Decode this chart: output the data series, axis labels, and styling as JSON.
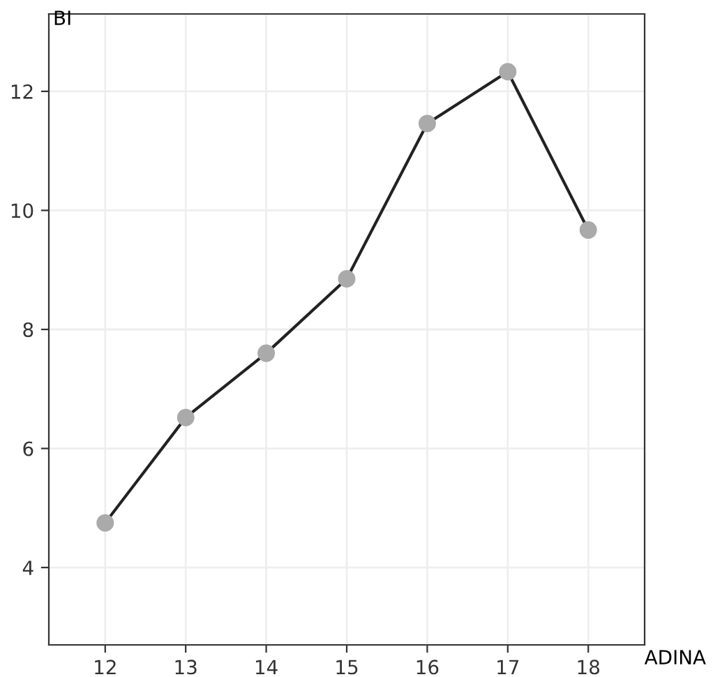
{
  "chart_data": {
    "type": "line",
    "xlabel": "ADINA",
    "ylabel": "BI",
    "x": [
      12,
      13,
      14,
      15,
      16,
      17,
      18
    ],
    "series": [
      {
        "color": "#222222",
        "values": [
          4.75,
          6.52,
          7.6,
          8.85,
          11.46,
          12.33,
          9.67
        ]
      }
    ],
    "marker": "circle",
    "line_style": "solid",
    "grid": true,
    "xlim": [
      11.3,
      18.7
    ],
    "xticks": [
      12,
      13,
      14,
      15,
      16,
      17,
      18
    ],
    "ylim": [
      2.7,
      13.3
    ],
    "yticks": [
      4,
      6,
      8,
      10,
      12
    ]
  }
}
